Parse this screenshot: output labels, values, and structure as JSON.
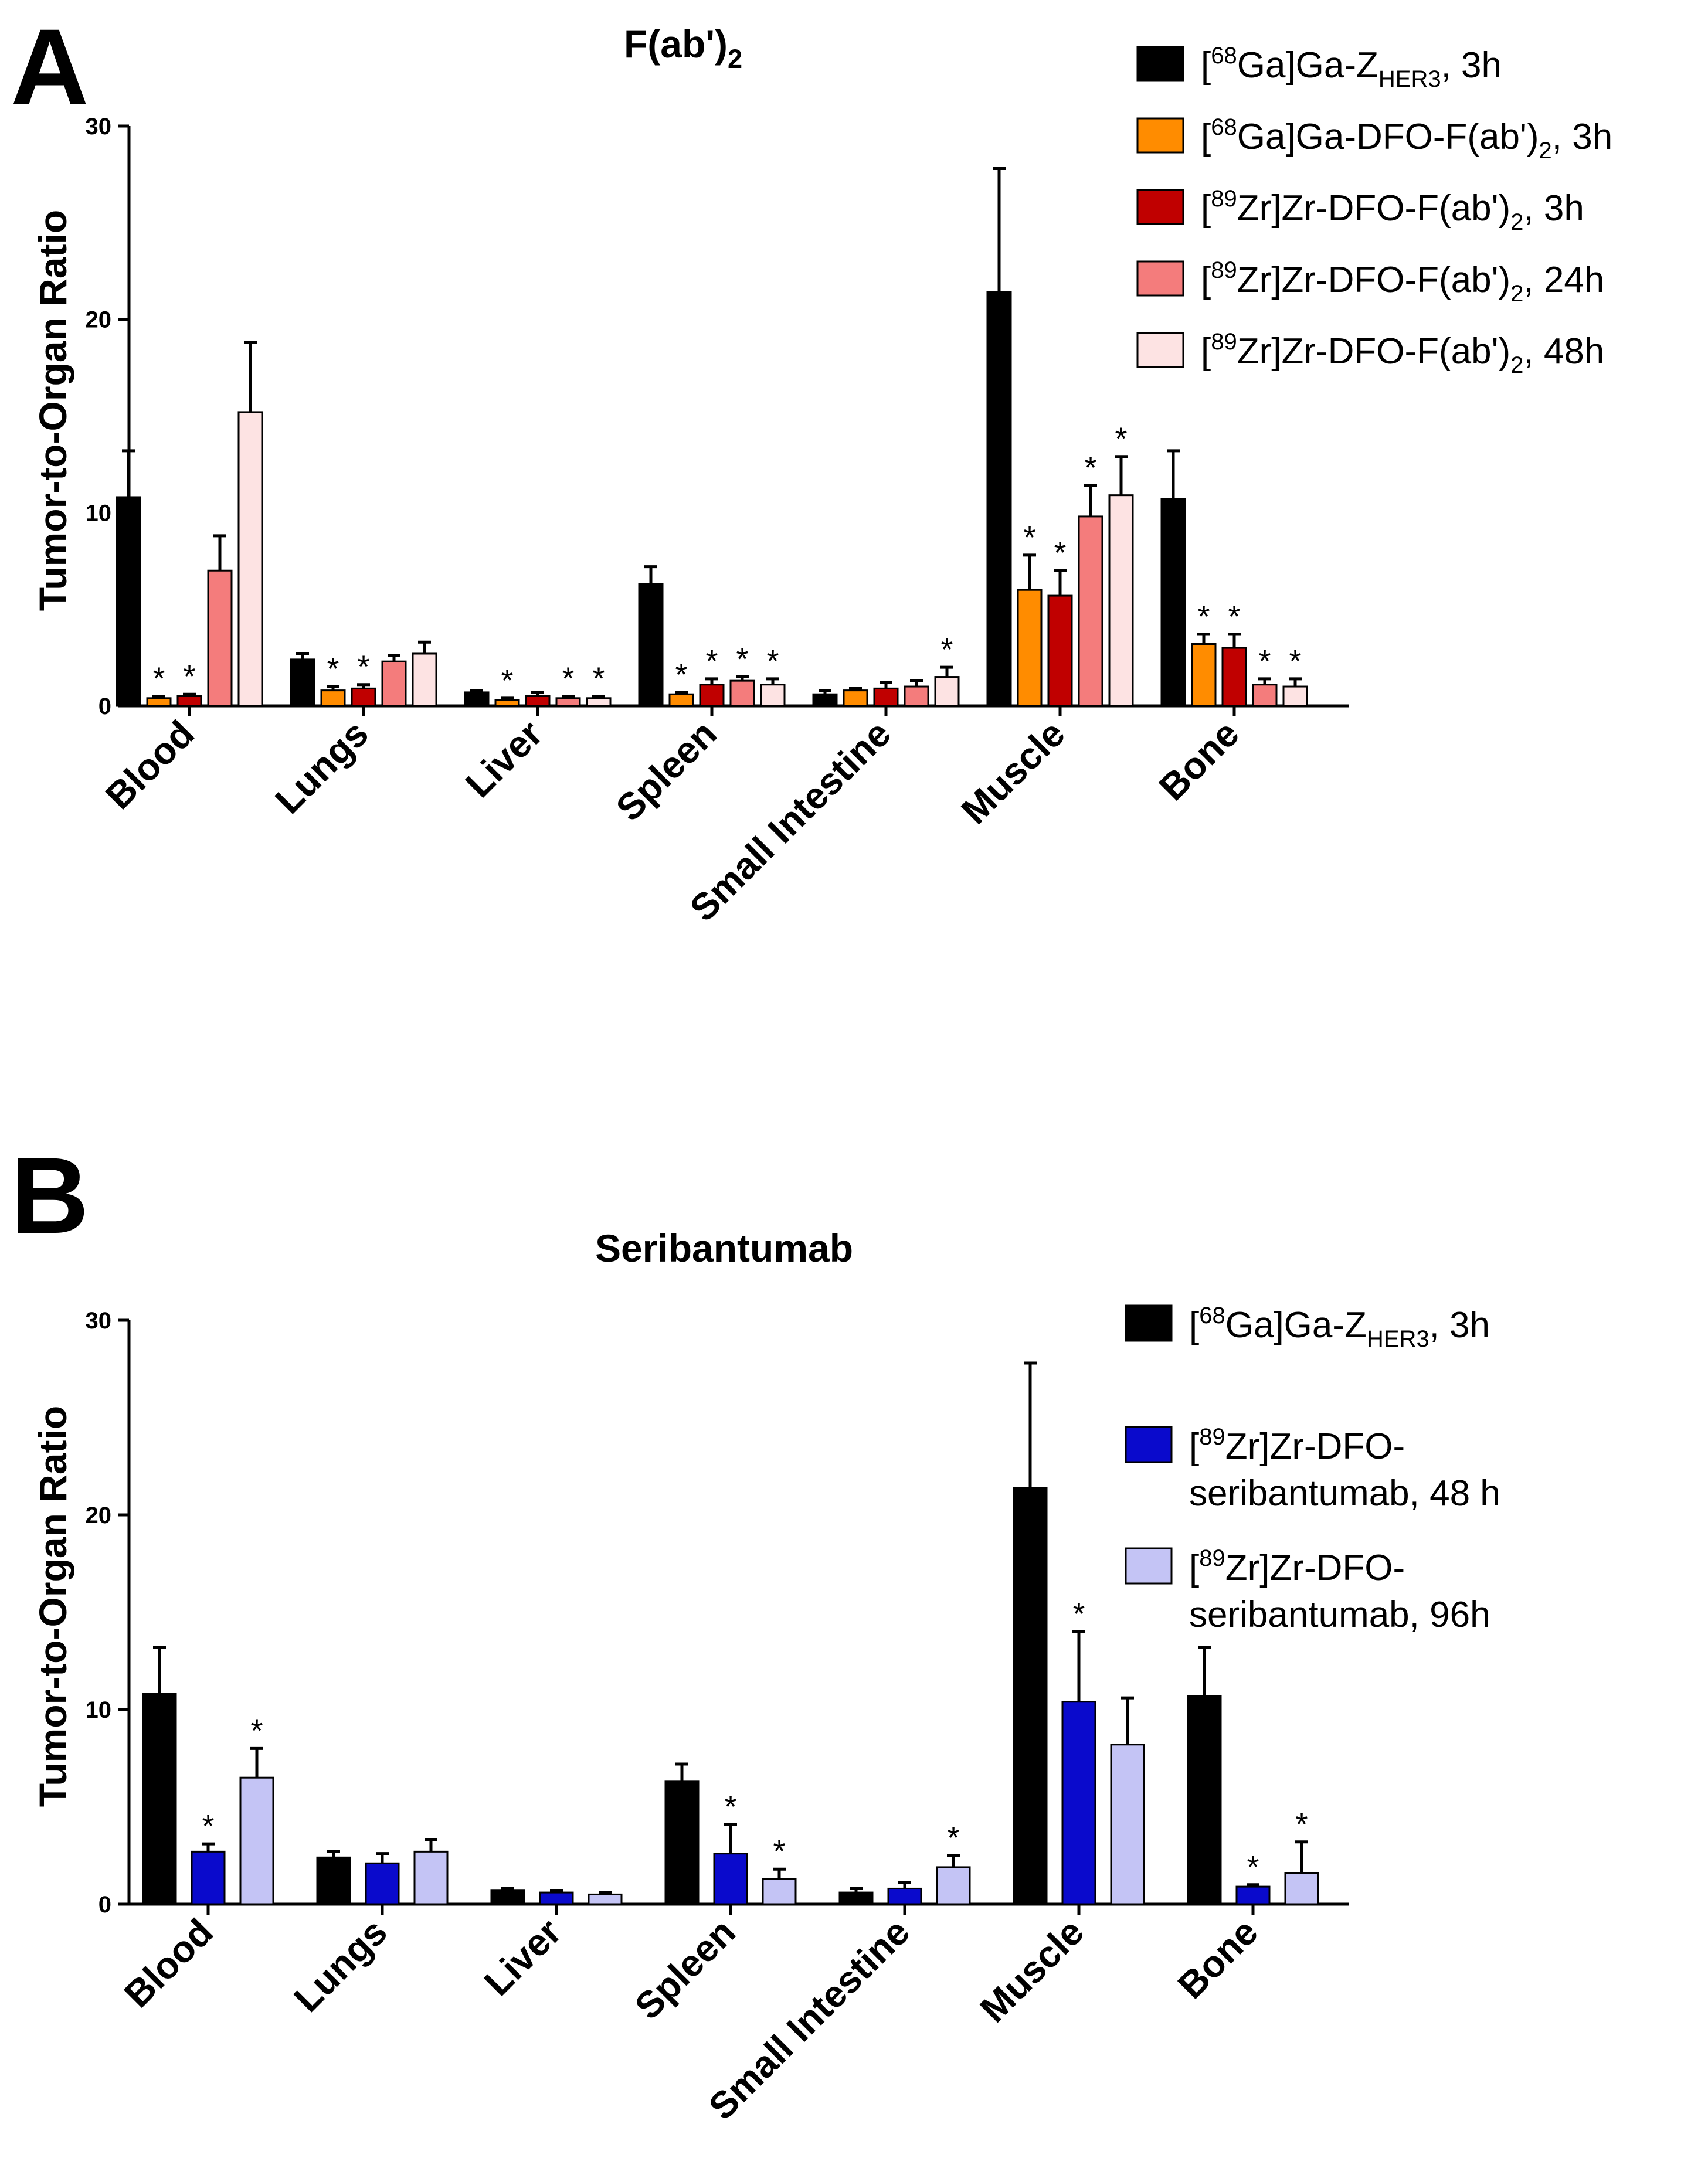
{
  "chart_data": [
    {
      "panel_label": "A",
      "type": "bar",
      "title": "F(ab')",
      "title_sub": "2",
      "ylabel": "Tumor-to-Organ Ratio",
      "ylim": [
        0,
        30
      ],
      "yticks": [
        "0",
        "10",
        "20",
        "30"
      ],
      "categories": [
        "Blood",
        "Lungs",
        "Liver",
        "Spleen",
        "Small Intestine",
        "Muscle",
        "Bone"
      ],
      "series": [
        {
          "name": "[68Ga]Ga-ZHER3, 3h",
          "legend": {
            "sup": "68",
            "pre": "Ga]Ga-Z",
            "sub": "HER3",
            "post": ", 3h"
          },
          "color": "#000000",
          "values": [
            10.8,
            2.4,
            0.7,
            6.3,
            0.6,
            21.4,
            10.7
          ],
          "errors": [
            2.4,
            0.3,
            0.1,
            0.9,
            0.2,
            6.4,
            2.5
          ],
          "significant": [
            false,
            false,
            false,
            false,
            false,
            false,
            false
          ]
        },
        {
          "name": "[68Ga]Ga-DFO-F(ab')2, 3h",
          "legend": {
            "sup": "68",
            "pre": "Ga]Ga-DFO-F(ab')",
            "sub": "2",
            "post": ", 3h"
          },
          "color": "#FF8C00",
          "values": [
            0.4,
            0.8,
            0.3,
            0.6,
            0.8,
            6.0,
            3.2
          ],
          "errors": [
            0.1,
            0.2,
            0.1,
            0.1,
            0.1,
            1.8,
            0.5
          ],
          "significant": [
            true,
            true,
            true,
            true,
            false,
            true,
            true
          ]
        },
        {
          "name": "[89Zr]Zr-DFO-F(ab')2, 3h",
          "legend": {
            "sup": "89",
            "pre": "Zr]Zr-DFO-F(ab')",
            "sub": "2",
            "post": ", 3h"
          },
          "color": "#C00000",
          "values": [
            0.5,
            0.9,
            0.5,
            1.1,
            0.9,
            5.7,
            3.0
          ],
          "errors": [
            0.1,
            0.2,
            0.2,
            0.3,
            0.3,
            1.3,
            0.7
          ],
          "significant": [
            true,
            true,
            false,
            true,
            false,
            true,
            true
          ]
        },
        {
          "name": "[89Zr]Zr-DFO-F(ab')2, 24h",
          "legend": {
            "sup": "89",
            "pre": "Zr]Zr-DFO-F(ab')",
            "sub": "2",
            "post": ", 24h"
          },
          "color": "#F47C7C",
          "values": [
            7.0,
            2.3,
            0.4,
            1.3,
            1.0,
            9.8,
            1.1
          ],
          "errors": [
            1.8,
            0.3,
            0.1,
            0.2,
            0.3,
            1.6,
            0.3
          ],
          "significant": [
            false,
            false,
            true,
            true,
            false,
            true,
            true
          ]
        },
        {
          "name": "[89Zr]Zr-DFO-F(ab')2, 48h",
          "legend": {
            "sup": "89",
            "pre": "Zr]Zr-DFO-F(ab')",
            "sub": "2",
            "post": ", 48h"
          },
          "color": "#FDE3E3",
          "values": [
            15.2,
            2.7,
            0.4,
            1.1,
            1.5,
            10.9,
            1.0
          ],
          "errors": [
            3.6,
            0.6,
            0.1,
            0.3,
            0.5,
            2.0,
            0.4
          ],
          "significant": [
            false,
            false,
            true,
            true,
            true,
            true,
            true
          ]
        }
      ]
    },
    {
      "panel_label": "B",
      "type": "bar",
      "title": "Seribantumab",
      "title_sub": "",
      "ylabel": "Tumor-to-Organ Ratio",
      "ylim": [
        0,
        30
      ],
      "yticks": [
        "0",
        "10",
        "20",
        "30"
      ],
      "categories": [
        "Blood",
        "Lungs",
        "Liver",
        "Spleen",
        "Small Intestine",
        "Muscle",
        "Bone"
      ],
      "series": [
        {
          "name": "[68Ga]Ga-ZHER3, 3h",
          "legend": {
            "sup": "68",
            "pre": "Ga]Ga-Z",
            "sub": "HER3",
            "post": ", 3h"
          },
          "color": "#000000",
          "values": [
            10.8,
            2.4,
            0.7,
            6.3,
            0.6,
            21.4,
            10.7
          ],
          "errors": [
            2.4,
            0.3,
            0.1,
            0.9,
            0.2,
            6.4,
            2.5
          ],
          "significant": [
            false,
            false,
            false,
            false,
            false,
            false,
            false
          ]
        },
        {
          "name": "[89Zr]Zr-DFO-seribantumab, 48 h",
          "legend": {
            "sup": "89",
            "pre": "Zr]Zr-DFO-",
            "line2": "seribantumab, 48 h"
          },
          "color": "#0A0ACC",
          "values": [
            2.7,
            2.1,
            0.6,
            2.6,
            0.8,
            10.4,
            0.9
          ],
          "errors": [
            0.4,
            0.5,
            0.1,
            1.5,
            0.3,
            3.6,
            0.1
          ],
          "significant": [
            true,
            false,
            false,
            true,
            false,
            true,
            true
          ]
        },
        {
          "name": "[89Zr]Zr-DFO-seribantumab, 96h",
          "legend": {
            "sup": "89",
            "pre": "Zr]Zr-DFO-",
            "line2": "seribantumab, 96h"
          },
          "color": "#C4C4F5",
          "values": [
            6.5,
            2.7,
            0.5,
            1.3,
            1.9,
            8.2,
            1.6
          ],
          "errors": [
            1.5,
            0.6,
            0.1,
            0.5,
            0.6,
            2.4,
            1.6
          ],
          "significant": [
            true,
            false,
            false,
            true,
            true,
            false,
            true
          ]
        }
      ]
    }
  ]
}
